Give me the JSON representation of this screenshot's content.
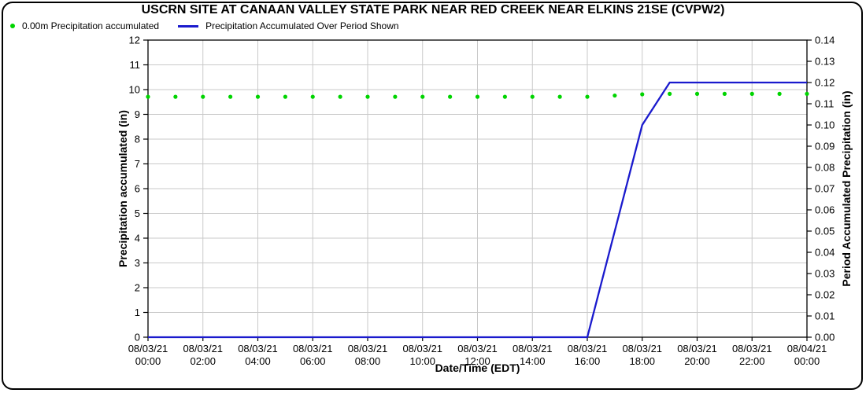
{
  "header": {
    "title": "USCRN SITE AT CANAAN VALLEY STATE PARK NEAR RED CREEK NEAR ELKINS 21SE (CVPW2)"
  },
  "legend": {
    "items": [
      {
        "label": "0.00m Precipitation accumulated",
        "marker": "dot",
        "color": "#00d400"
      },
      {
        "label": "Precipitation Accumulated Over Period Shown",
        "marker": "line",
        "color": "#1a1acd"
      }
    ]
  },
  "colors": {
    "grid": "#c9c9c9",
    "axis": "#000000",
    "background": "#ffffff",
    "dot_series": "#00d400",
    "line_series": "#1a1acd"
  },
  "chart_data": {
    "type": "line",
    "title": "USCRN SITE AT CANAAN VALLEY STATE PARK NEAR RED CREEK NEAR ELKINS 21SE (CVPW2)",
    "xlabel": "Date/Time (EDT)",
    "ylabel_left": "Precipitation accumulated (in)",
    "ylabel_right": "Period Accumulated Precipitation (in)",
    "grid": true,
    "legend_position": "top-left",
    "x_unit": "hours since 08/03/21 00:00 EDT",
    "x": [
      0,
      1,
      2,
      3,
      4,
      5,
      6,
      7,
      8,
      9,
      10,
      11,
      12,
      13,
      14,
      15,
      16,
      17,
      18,
      19,
      20,
      21,
      22,
      23,
      24
    ],
    "ylim_left": [
      0,
      12
    ],
    "ytick_step_left": 1,
    "ylim_right": [
      0,
      0.14
    ],
    "ytick_step_right": 0.01,
    "x_ticks_hours": [
      0,
      2,
      4,
      6,
      8,
      10,
      12,
      14,
      16,
      18,
      20,
      22,
      24
    ],
    "x_tick_labels": [
      [
        "08/03/21",
        "00:00"
      ],
      [
        "08/03/21",
        "02:00"
      ],
      [
        "08/03/21",
        "04:00"
      ],
      [
        "08/03/21",
        "06:00"
      ],
      [
        "08/03/21",
        "08:00"
      ],
      [
        "08/03/21",
        "10:00"
      ],
      [
        "08/03/21",
        "12:00"
      ],
      [
        "08/03/21",
        "14:00"
      ],
      [
        "08/03/21",
        "16:00"
      ],
      [
        "08/03/21",
        "18:00"
      ],
      [
        "08/03/21",
        "20:00"
      ],
      [
        "08/03/21",
        "22:00"
      ],
      [
        "08/04/21",
        "00:00"
      ]
    ],
    "series": [
      {
        "name": "0.00m Precipitation accumulated",
        "type": "scatter",
        "axis": "left",
        "color": "#00d400",
        "values": [
          9.71,
          9.71,
          9.71,
          9.71,
          9.71,
          9.71,
          9.71,
          9.71,
          9.71,
          9.71,
          9.71,
          9.71,
          9.71,
          9.71,
          9.71,
          9.71,
          9.71,
          9.76,
          9.81,
          9.83,
          9.83,
          9.83,
          9.83,
          9.83,
          9.83
        ]
      },
      {
        "name": "Precipitation Accumulated Over Period Shown",
        "type": "line",
        "axis": "right",
        "color": "#1a1acd",
        "values": [
          0.0,
          0.0,
          0.0,
          0.0,
          0.0,
          0.0,
          0.0,
          0.0,
          0.0,
          0.0,
          0.0,
          0.0,
          0.0,
          0.0,
          0.0,
          0.0,
          0.0,
          0.05,
          0.1,
          0.12,
          0.12,
          0.12,
          0.12,
          0.12,
          0.12
        ]
      }
    ]
  }
}
